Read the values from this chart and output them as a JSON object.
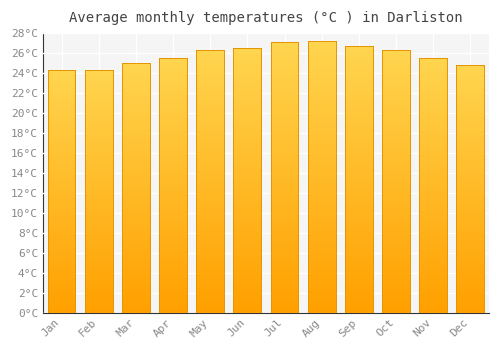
{
  "title": "Average monthly temperatures (°C ) in Darliston",
  "months": [
    "Jan",
    "Feb",
    "Mar",
    "Apr",
    "May",
    "Jun",
    "Jul",
    "Aug",
    "Sep",
    "Oct",
    "Nov",
    "Dec"
  ],
  "values": [
    24.3,
    24.3,
    25.0,
    25.5,
    26.3,
    26.5,
    27.1,
    27.2,
    26.7,
    26.3,
    25.5,
    24.8
  ],
  "bar_color_light": "#FFD54F",
  "bar_color_dark": "#FFA000",
  "bar_edge_color": "#E69500",
  "background_color": "#FFFFFF",
  "plot_bg_color": "#F5F5F5",
  "grid_color": "#FFFFFF",
  "axis_color": "#333333",
  "tick_color": "#888888",
  "title_color": "#444444",
  "ylim": [
    0,
    28
  ],
  "ytick_step": 2,
  "title_fontsize": 10,
  "tick_fontsize": 8,
  "font_family": "monospace"
}
